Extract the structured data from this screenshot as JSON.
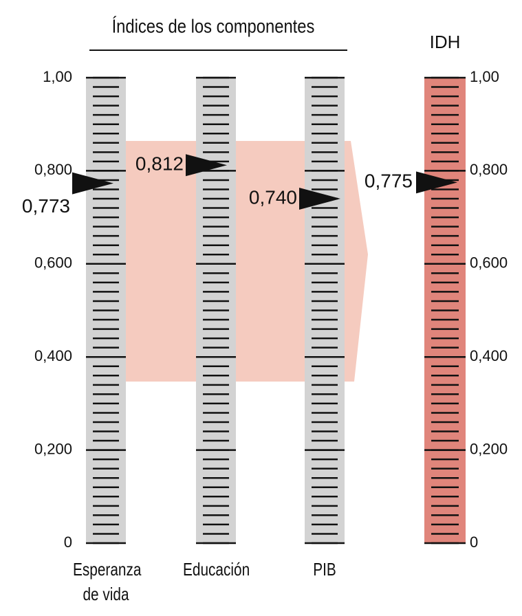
{
  "chart_data": {
    "type": "scale",
    "title": "Índices de los componentes",
    "total_label": "IDH",
    "categories": [
      "Esperanza de vida",
      "Educación",
      "PIB"
    ],
    "values": [
      0.773,
      0.812,
      0.74
    ],
    "value_labels": [
      "0,773",
      "0,812",
      "0,740"
    ],
    "total_value": 0.775,
    "total_value_label": "0,775",
    "color": "#d3d3d3",
    "total_color": "#e0857b",
    "band_color": "#f5cbbf",
    "ylim": [
      0,
      1
    ],
    "yticks": [
      0,
      {
        "value": 0.2,
        "label": "0,200"
      },
      {
        "value": 0.4,
        "label": "0,400"
      },
      {
        "value": 0.6,
        "label": "0,600"
      },
      {
        "value": 0.8,
        "label": "0,800"
      },
      {
        "value": 1,
        "label": "1,00"
      }
    ]
  }
}
